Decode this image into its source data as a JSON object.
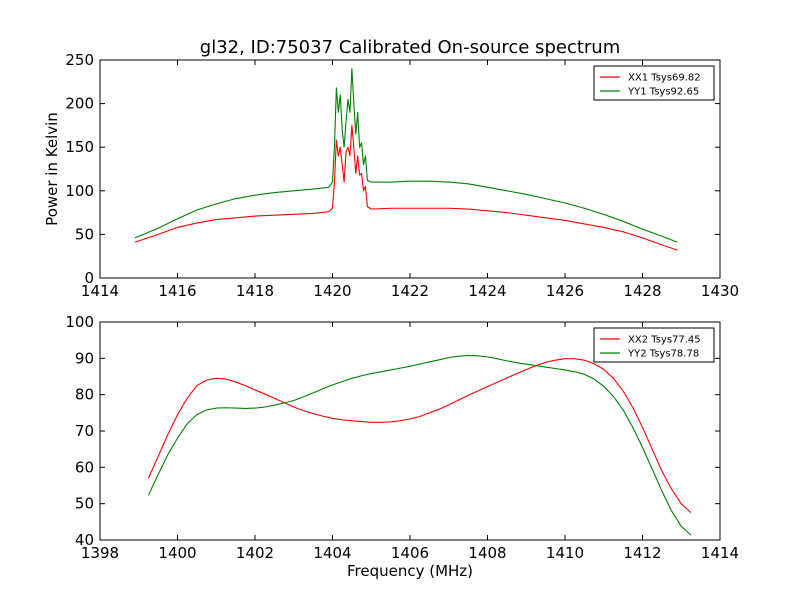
{
  "chart_data": [
    {
      "type": "line",
      "title": "gl32, ID:75037 Calibrated On-source spectrum",
      "xlabel": "",
      "ylabel": "Power in Kelvin",
      "xlim": [
        1414,
        1430
      ],
      "ylim": [
        0,
        250
      ],
      "xticks": [
        1414,
        1416,
        1418,
        1420,
        1422,
        1424,
        1426,
        1428,
        1430
      ],
      "yticks": [
        0,
        50,
        100,
        150,
        200,
        250
      ],
      "grid": false,
      "legend_position": "top-right",
      "series": [
        {
          "name": "XX1 Tsys69.82",
          "color": "#ff0000",
          "x": [
            1414.9,
            1415.5,
            1416.0,
            1416.5,
            1417.0,
            1417.5,
            1418.0,
            1418.5,
            1419.0,
            1419.5,
            1419.9,
            1420.0,
            1420.05,
            1420.1,
            1420.15,
            1420.2,
            1420.25,
            1420.3,
            1420.35,
            1420.4,
            1420.45,
            1420.5,
            1420.55,
            1420.6,
            1420.65,
            1420.7,
            1420.75,
            1420.8,
            1420.85,
            1420.9,
            1421.0,
            1421.5,
            1422.0,
            1422.5,
            1423.0,
            1423.5,
            1424.0,
            1424.5,
            1425.0,
            1425.5,
            1426.0,
            1426.5,
            1427.0,
            1427.5,
            1428.0,
            1428.5,
            1428.9
          ],
          "y": [
            41,
            50,
            58,
            63,
            67,
            69,
            71,
            72,
            73,
            74,
            76,
            80,
            110,
            158,
            140,
            150,
            130,
            110,
            145,
            150,
            140,
            175,
            150,
            120,
            140,
            118,
            120,
            100,
            105,
            82,
            79,
            80,
            80,
            80,
            80,
            79,
            77,
            75,
            72,
            69,
            66,
            62,
            58,
            53,
            46,
            38,
            32
          ]
        },
        {
          "name": "YY1 Tsys92.65",
          "color": "#008000",
          "x": [
            1414.9,
            1415.5,
            1416.0,
            1416.5,
            1417.0,
            1417.5,
            1418.0,
            1418.5,
            1419.0,
            1419.5,
            1419.9,
            1420.0,
            1420.05,
            1420.1,
            1420.15,
            1420.2,
            1420.25,
            1420.3,
            1420.35,
            1420.4,
            1420.45,
            1420.5,
            1420.55,
            1420.6,
            1420.65,
            1420.7,
            1420.75,
            1420.8,
            1420.85,
            1420.9,
            1421.0,
            1421.5,
            1422.0,
            1422.5,
            1423.0,
            1423.5,
            1424.0,
            1424.5,
            1425.0,
            1425.5,
            1426.0,
            1426.5,
            1427.0,
            1427.5,
            1428.0,
            1428.5,
            1428.9
          ],
          "y": [
            46,
            57,
            68,
            78,
            85,
            91,
            95,
            98,
            100,
            102,
            104,
            110,
            150,
            218,
            190,
            210,
            170,
            150,
            180,
            205,
            190,
            240,
            200,
            165,
            190,
            150,
            155,
            130,
            140,
            112,
            110,
            110,
            111,
            111,
            110,
            108,
            104,
            100,
            96,
            91,
            86,
            80,
            73,
            65,
            56,
            48,
            41
          ]
        }
      ]
    },
    {
      "type": "line",
      "title": "",
      "xlabel": "Frequency (MHz)",
      "ylabel": "",
      "xlim": [
        1398,
        1414
      ],
      "ylim": [
        40,
        100
      ],
      "xticks": [
        1398,
        1400,
        1402,
        1404,
        1406,
        1408,
        1410,
        1412,
        1414
      ],
      "yticks": [
        40,
        50,
        60,
        70,
        80,
        90,
        100
      ],
      "grid": false,
      "legend_position": "top-right",
      "series": [
        {
          "name": "XX2 Tsys77.45",
          "color": "#ff0000",
          "x": [
            1399.25,
            1399.5,
            1399.75,
            1400.0,
            1400.25,
            1400.5,
            1400.75,
            1401.0,
            1401.25,
            1401.5,
            1401.75,
            1402.0,
            1402.25,
            1402.5,
            1402.75,
            1403.0,
            1403.25,
            1403.5,
            1403.75,
            1404.0,
            1404.25,
            1404.5,
            1404.75,
            1405.0,
            1405.25,
            1405.5,
            1405.75,
            1406.0,
            1406.25,
            1406.5,
            1406.75,
            1407.0,
            1407.25,
            1407.5,
            1407.75,
            1408.0,
            1408.25,
            1408.5,
            1408.75,
            1409.0,
            1409.25,
            1409.5,
            1409.75,
            1410.0,
            1410.25,
            1410.5,
            1410.75,
            1411.0,
            1411.25,
            1411.5,
            1411.75,
            1412.0,
            1412.25,
            1412.5,
            1412.75,
            1413.0,
            1413.25
          ],
          "y": [
            57,
            63,
            69,
            74.5,
            79,
            82.5,
            84,
            84.5,
            84.3,
            83.5,
            82.5,
            81.3,
            80.2,
            79,
            77.8,
            76.6,
            75.6,
            74.8,
            74.1,
            73.5,
            73.1,
            72.8,
            72.6,
            72.4,
            72.4,
            72.5,
            72.8,
            73.3,
            74,
            75,
            76,
            77.2,
            78.5,
            79.8,
            81,
            82.2,
            83.4,
            84.6,
            85.8,
            86.9,
            88,
            88.9,
            89.5,
            89.9,
            89.9,
            89.5,
            88.5,
            87,
            84.5,
            81,
            76.5,
            71,
            65,
            59,
            54,
            50,
            47.5
          ]
        },
        {
          "name": "YY2 Tsys78.78",
          "color": "#008000",
          "x": [
            1399.25,
            1399.5,
            1399.75,
            1400.0,
            1400.25,
            1400.5,
            1400.75,
            1401.0,
            1401.25,
            1401.5,
            1401.75,
            1402.0,
            1402.25,
            1402.5,
            1402.75,
            1403.0,
            1403.25,
            1403.5,
            1403.75,
            1404.0,
            1404.25,
            1404.5,
            1404.75,
            1405.0,
            1405.25,
            1405.5,
            1405.75,
            1406.0,
            1406.25,
            1406.5,
            1406.75,
            1407.0,
            1407.25,
            1407.5,
            1407.75,
            1408.0,
            1408.25,
            1408.5,
            1408.75,
            1409.0,
            1409.25,
            1409.5,
            1409.75,
            1410.0,
            1410.25,
            1410.5,
            1410.75,
            1411.0,
            1411.25,
            1411.5,
            1411.75,
            1412.0,
            1412.25,
            1412.5,
            1412.75,
            1413.0,
            1413.25
          ],
          "y": [
            52.3,
            58,
            63.5,
            68,
            72,
            74.5,
            75.8,
            76.3,
            76.4,
            76.3,
            76.2,
            76.3,
            76.6,
            77.1,
            77.7,
            78.4,
            79.4,
            80.5,
            81.6,
            82.7,
            83.6,
            84.5,
            85.2,
            85.8,
            86.3,
            86.8,
            87.3,
            87.8,
            88.4,
            89,
            89.6,
            90.2,
            90.6,
            90.8,
            90.7,
            90.4,
            89.9,
            89.3,
            88.8,
            88.4,
            88,
            87.6,
            87.2,
            86.8,
            86.3,
            85.6,
            84.3,
            82.3,
            79.5,
            75.8,
            71,
            65.5,
            59.5,
            53.5,
            48,
            43.8,
            41.3
          ]
        }
      ]
    }
  ]
}
